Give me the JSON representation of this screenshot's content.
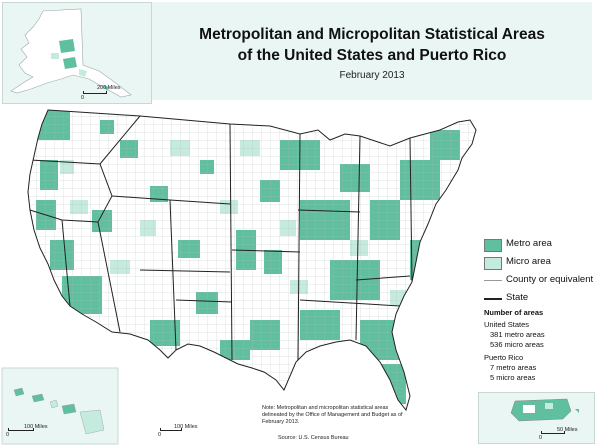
{
  "title": {
    "line1": "Metropolitan and Micropolitan Statistical Areas",
    "line2": "of the United States and Puerto Rico",
    "date": "February 2013"
  },
  "legend": {
    "metro": "Metro area",
    "micro": "Micro area",
    "county": "County or equivalent",
    "state": "State"
  },
  "counts": {
    "heading": "Number of areas",
    "us_label": "United States",
    "us_metro": "381 metro areas",
    "us_micro": "536 micro areas",
    "pr_label": "Puerto Rico",
    "pr_metro": "7 metro areas",
    "pr_micro": "5 micro areas"
  },
  "note": "Note: Metropolitan and micropolitan statistical areas delineated by the Office of Management and Budget as of February 2013.",
  "source": "Source: U.S. Census Bureau",
  "scales": {
    "alaska": {
      "zero": "0",
      "label": "200 Miles"
    },
    "hawaii": {
      "zero": "0",
      "label": "100 Miles"
    },
    "conus": {
      "zero": "0",
      "label": "100 Miles"
    },
    "puerto_rico": {
      "zero": "0",
      "label": "50 Miles"
    }
  },
  "colors": {
    "metro": "#5fbf9f",
    "micro": "#c5ebdf",
    "land": "#ffffff",
    "county_line": "#a8b0ad",
    "state_line": "#222222",
    "inset_bg": "#e9f6f3"
  }
}
